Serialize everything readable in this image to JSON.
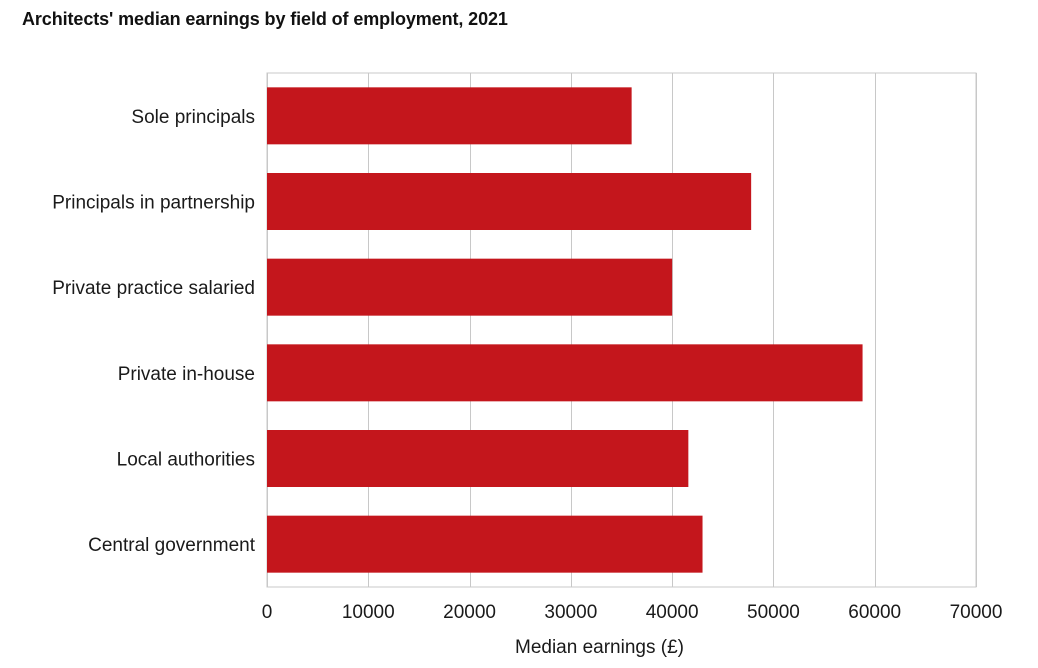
{
  "chart_data": {
    "type": "bar",
    "orientation": "horizontal",
    "title": "Architects' median earnings by field of employment, 2021",
    "xlabel": "Median earnings (£)",
    "ylabel": "",
    "categories": [
      "Sole principals",
      "Principals in partnership",
      "Private practice salaried",
      "Private in-house",
      "Local authorities",
      "Central government"
    ],
    "values": [
      36000,
      47800,
      40000,
      58800,
      41600,
      43000
    ],
    "xlim": [
      0,
      70000
    ],
    "xticks": [
      0,
      10000,
      20000,
      30000,
      40000,
      50000,
      60000,
      70000
    ],
    "xtick_labels": [
      "0",
      "10000",
      "20000",
      "30000",
      "40000",
      "50000",
      "60000",
      "70000"
    ],
    "grid": true,
    "legend": "none",
    "bar_color": "#c4161c",
    "grid_color": "#c8c8c8"
  }
}
